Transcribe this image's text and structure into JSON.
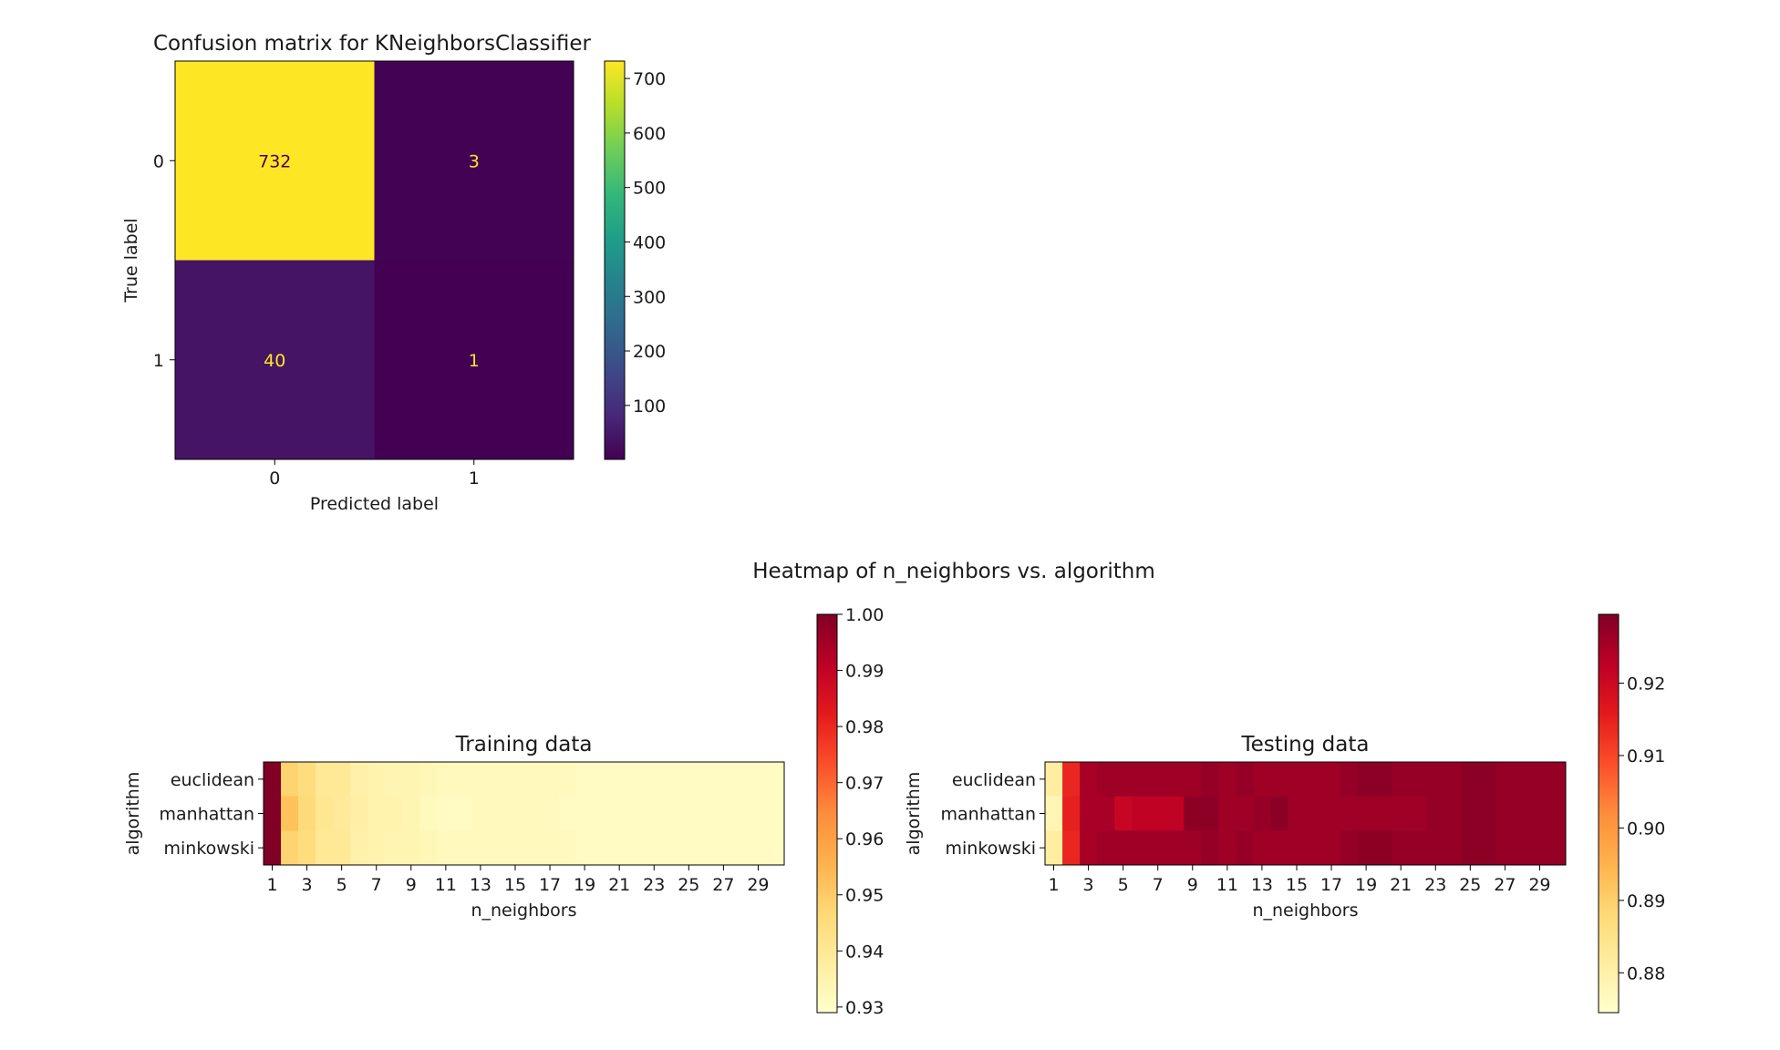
{
  "figure": {
    "suptitle": "Heatmap of n_neighbors vs. algorithm"
  },
  "chart_data": [
    {
      "type": "heatmap",
      "title": "Confusion matrix for KNeighborsClassifier",
      "xlabel": "Predicted label",
      "ylabel": "True label",
      "x_categories": [
        "0",
        "1"
      ],
      "y_categories": [
        "0",
        "1"
      ],
      "values": [
        [
          732,
          3
        ],
        [
          40,
          1
        ]
      ],
      "colormap": "viridis",
      "vmin": 1,
      "vmax": 732,
      "colorbar_ticks": [
        100,
        200,
        300,
        400,
        500,
        600,
        700
      ],
      "cell_text_colors": {
        "on_dark": "#fde725",
        "on_light": "#440154"
      }
    },
    {
      "type": "heatmap",
      "title": "Training data",
      "xlabel": "n_neighbors",
      "ylabel": "algorithm",
      "x_categories": [
        "1",
        "2",
        "3",
        "4",
        "5",
        "6",
        "7",
        "8",
        "9",
        "10",
        "11",
        "12",
        "13",
        "14",
        "15",
        "16",
        "17",
        "18",
        "19",
        "20",
        "21",
        "22",
        "23",
        "24",
        "25",
        "26",
        "27",
        "28",
        "29",
        "30"
      ],
      "x_tick_labels": [
        "1",
        "3",
        "5",
        "7",
        "9",
        "11",
        "13",
        "15",
        "17",
        "19",
        "21",
        "23",
        "25",
        "27",
        "29"
      ],
      "y_categories": [
        "euclidean",
        "manhattan",
        "minkowski"
      ],
      "colormap": "YlOrRd",
      "vmin": 0.929,
      "vmax": 1.0,
      "colorbar_ticks": [
        0.93,
        0.94,
        0.95,
        0.96,
        0.97,
        0.98,
        0.99,
        1.0
      ],
      "values": [
        [
          1.0,
          0.948,
          0.945,
          0.94,
          0.94,
          0.936,
          0.935,
          0.934,
          0.934,
          0.933,
          0.932,
          0.932,
          0.932,
          0.932,
          0.932,
          0.932,
          0.932,
          0.932,
          0.931,
          0.931,
          0.931,
          0.931,
          0.931,
          0.931,
          0.931,
          0.931,
          0.931,
          0.931,
          0.931,
          0.931
        ],
        [
          1.0,
          0.952,
          0.946,
          0.941,
          0.939,
          0.937,
          0.935,
          0.935,
          0.934,
          0.932,
          0.931,
          0.931,
          0.932,
          0.932,
          0.932,
          0.932,
          0.932,
          0.931,
          0.931,
          0.931,
          0.931,
          0.931,
          0.931,
          0.931,
          0.931,
          0.931,
          0.931,
          0.931,
          0.931,
          0.931
        ],
        [
          1.0,
          0.948,
          0.945,
          0.94,
          0.94,
          0.936,
          0.935,
          0.934,
          0.934,
          0.933,
          0.932,
          0.932,
          0.932,
          0.932,
          0.932,
          0.932,
          0.932,
          0.932,
          0.931,
          0.931,
          0.931,
          0.931,
          0.931,
          0.931,
          0.931,
          0.931,
          0.931,
          0.931,
          0.931,
          0.931
        ]
      ]
    },
    {
      "type": "heatmap",
      "title": "Testing data",
      "xlabel": "n_neighbors",
      "ylabel": "algorithm",
      "x_categories": [
        "1",
        "2",
        "3",
        "4",
        "5",
        "6",
        "7",
        "8",
        "9",
        "10",
        "11",
        "12",
        "13",
        "14",
        "15",
        "16",
        "17",
        "18",
        "19",
        "20",
        "21",
        "22",
        "23",
        "24",
        "25",
        "26",
        "27",
        "28",
        "29",
        "30"
      ],
      "x_tick_labels": [
        "1",
        "3",
        "5",
        "7",
        "9",
        "11",
        "13",
        "15",
        "17",
        "19",
        "21",
        "23",
        "25",
        "27",
        "29"
      ],
      "y_categories": [
        "euclidean",
        "manhattan",
        "minkowski"
      ],
      "colormap": "YlOrRd",
      "vmin": 0.8745,
      "vmax": 0.9295,
      "colorbar_ticks": [
        0.88,
        0.89,
        0.9,
        0.91,
        0.92
      ],
      "values": [
        [
          0.881,
          0.914,
          0.925,
          0.926,
          0.926,
          0.926,
          0.926,
          0.926,
          0.926,
          0.927,
          0.926,
          0.927,
          0.926,
          0.926,
          0.926,
          0.926,
          0.926,
          0.927,
          0.928,
          0.928,
          0.927,
          0.927,
          0.927,
          0.927,
          0.928,
          0.928,
          0.927,
          0.927,
          0.927,
          0.927
        ],
        [
          0.878,
          0.915,
          0.925,
          0.925,
          0.921,
          0.922,
          0.922,
          0.922,
          0.928,
          0.928,
          0.926,
          0.926,
          0.927,
          0.928,
          0.926,
          0.926,
          0.926,
          0.926,
          0.926,
          0.926,
          0.926,
          0.926,
          0.927,
          0.927,
          0.928,
          0.928,
          0.927,
          0.927,
          0.927,
          0.927
        ],
        [
          0.881,
          0.914,
          0.925,
          0.926,
          0.926,
          0.926,
          0.926,
          0.926,
          0.926,
          0.927,
          0.926,
          0.927,
          0.926,
          0.926,
          0.926,
          0.926,
          0.926,
          0.927,
          0.928,
          0.928,
          0.927,
          0.927,
          0.927,
          0.927,
          0.928,
          0.928,
          0.927,
          0.927,
          0.927,
          0.927
        ]
      ]
    }
  ]
}
